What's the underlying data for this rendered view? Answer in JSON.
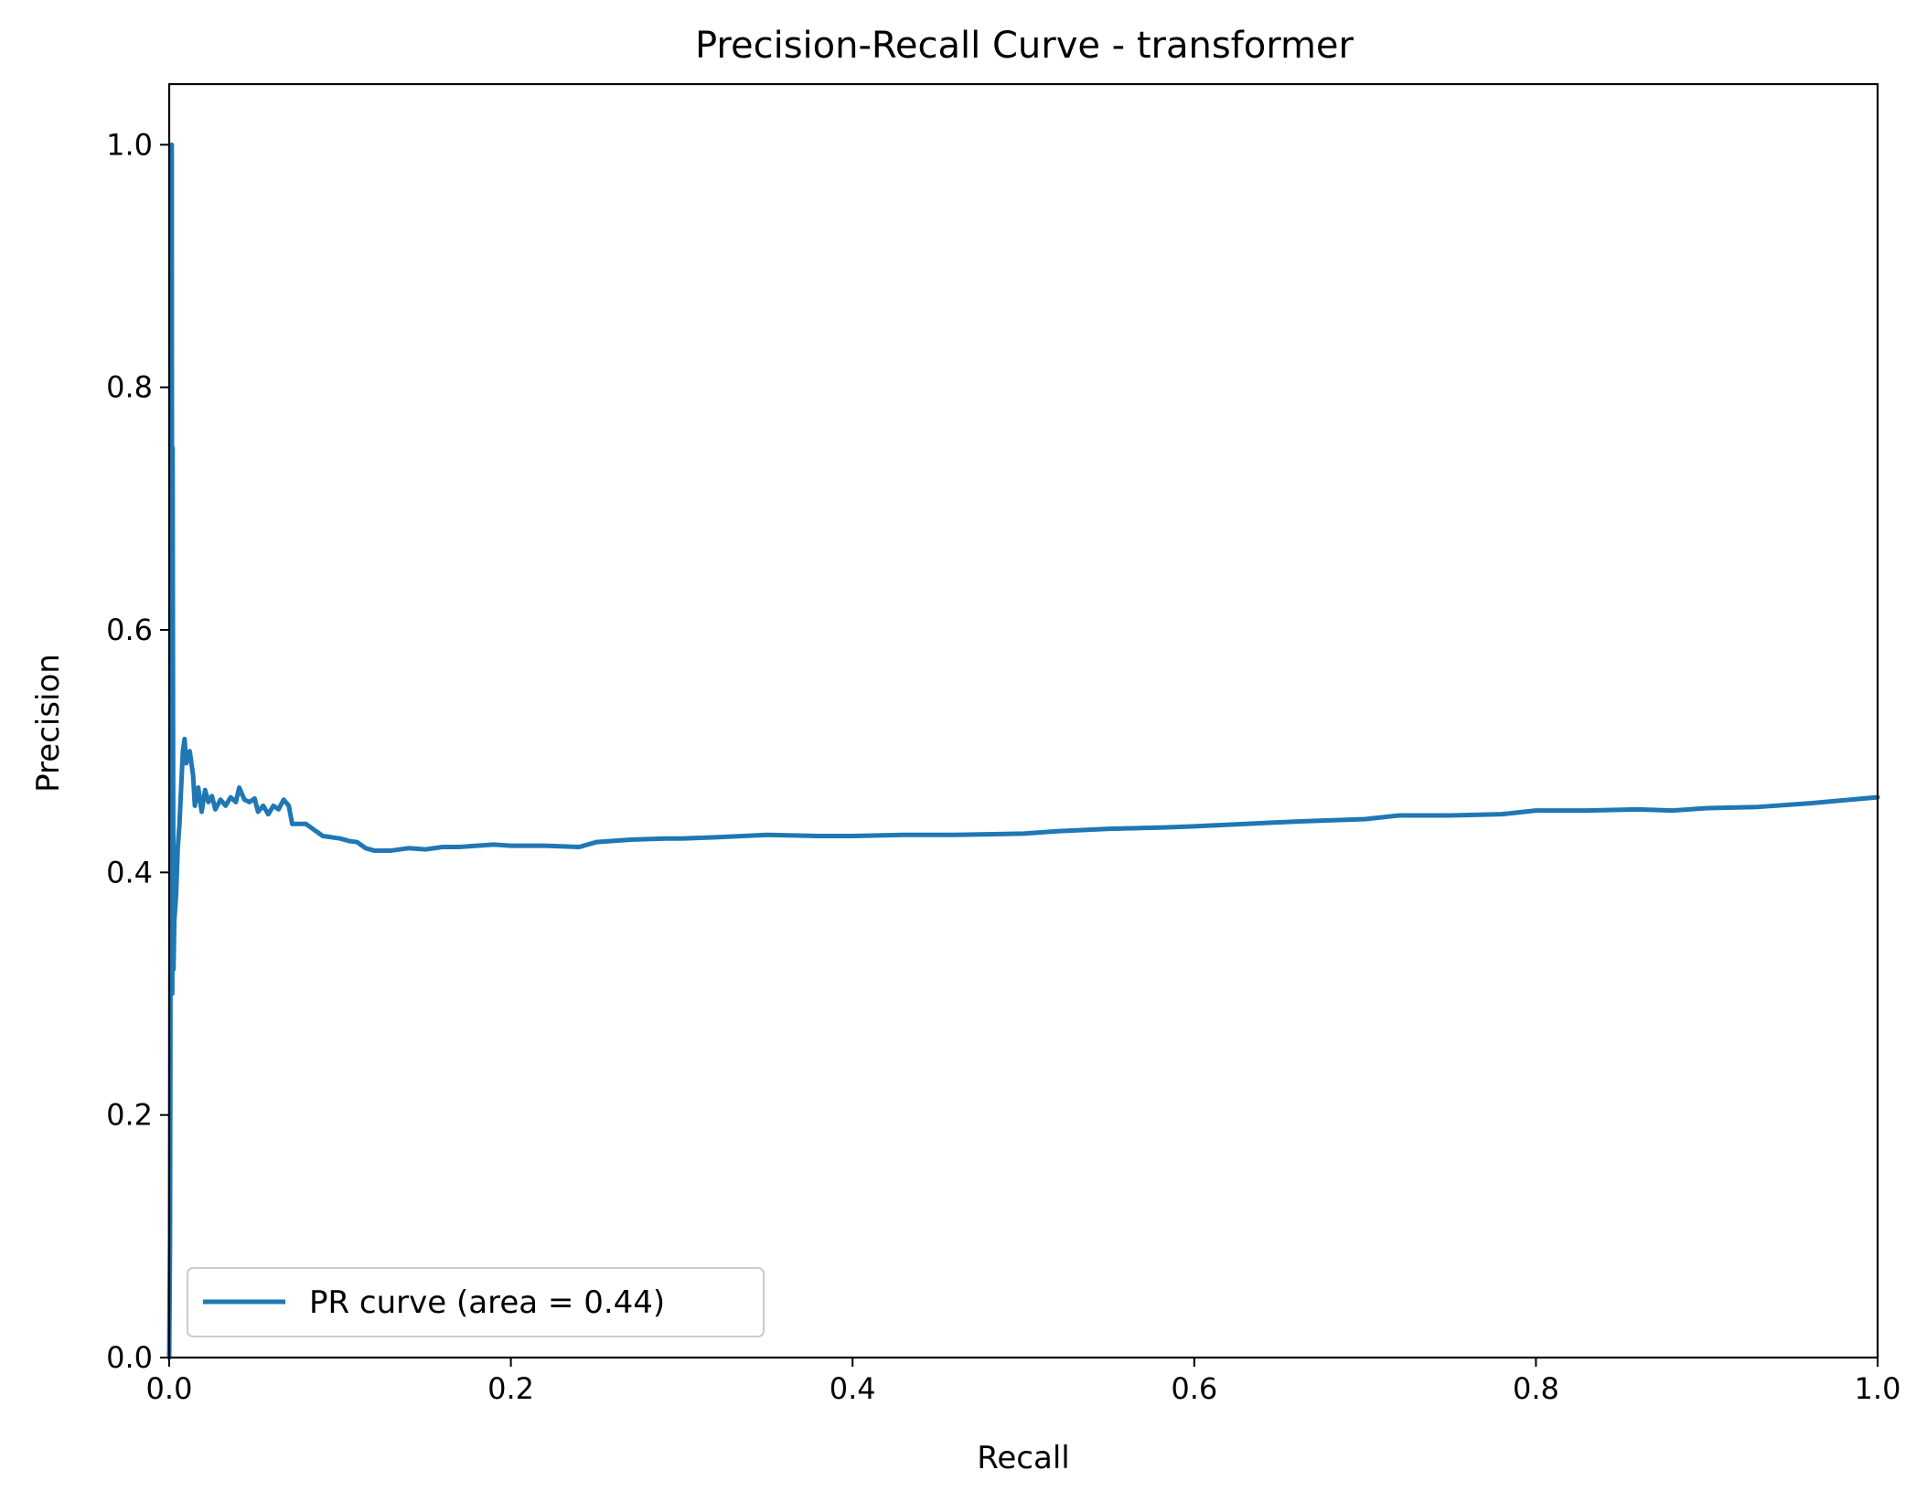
{
  "chart_data": {
    "type": "line",
    "title": "Precision-Recall Curve - transformer",
    "xlabel": "Recall",
    "ylabel": "Precision",
    "xlim": [
      0.0,
      1.0
    ],
    "ylim": [
      0.0,
      1.05
    ],
    "x_ticks": [
      "0.0",
      "0.2",
      "0.4",
      "0.6",
      "0.8",
      "1.0"
    ],
    "y_ticks": [
      "0.0",
      "0.2",
      "0.4",
      "0.6",
      "0.8",
      "1.0"
    ],
    "grid": false,
    "legend_position": "lower-left",
    "series": [
      {
        "name": "PR curve (area = 0.44)",
        "color": "#1f77b4",
        "points": [
          [
            0.0,
            0.0
          ],
          [
            0.0005,
            0.1
          ],
          [
            0.001,
            0.5
          ],
          [
            0.0015,
            1.0
          ],
          [
            0.0018,
            0.3
          ],
          [
            0.002,
            0.75
          ],
          [
            0.0025,
            0.32
          ],
          [
            0.003,
            0.36
          ],
          [
            0.004,
            0.38
          ],
          [
            0.005,
            0.42
          ],
          [
            0.006,
            0.44
          ],
          [
            0.007,
            0.47
          ],
          [
            0.008,
            0.5
          ],
          [
            0.009,
            0.51
          ],
          [
            0.01,
            0.49
          ],
          [
            0.012,
            0.5
          ],
          [
            0.014,
            0.48
          ],
          [
            0.015,
            0.455
          ],
          [
            0.017,
            0.47
          ],
          [
            0.019,
            0.45
          ],
          [
            0.021,
            0.468
          ],
          [
            0.023,
            0.458
          ],
          [
            0.025,
            0.463
          ],
          [
            0.027,
            0.452
          ],
          [
            0.03,
            0.46
          ],
          [
            0.033,
            0.455
          ],
          [
            0.036,
            0.462
          ],
          [
            0.039,
            0.458
          ],
          [
            0.041,
            0.47
          ],
          [
            0.044,
            0.46
          ],
          [
            0.047,
            0.458
          ],
          [
            0.05,
            0.461
          ],
          [
            0.052,
            0.45
          ],
          [
            0.055,
            0.455
          ],
          [
            0.058,
            0.448
          ],
          [
            0.061,
            0.455
          ],
          [
            0.064,
            0.452
          ],
          [
            0.067,
            0.46
          ],
          [
            0.07,
            0.455
          ],
          [
            0.072,
            0.44
          ],
          [
            0.075,
            0.44
          ],
          [
            0.08,
            0.44
          ],
          [
            0.085,
            0.435
          ],
          [
            0.09,
            0.43
          ],
          [
            0.1,
            0.428
          ],
          [
            0.105,
            0.426
          ],
          [
            0.11,
            0.425
          ],
          [
            0.115,
            0.42
          ],
          [
            0.12,
            0.418
          ],
          [
            0.13,
            0.418
          ],
          [
            0.14,
            0.42
          ],
          [
            0.15,
            0.419
          ],
          [
            0.16,
            0.421
          ],
          [
            0.17,
            0.421
          ],
          [
            0.18,
            0.422
          ],
          [
            0.19,
            0.423
          ],
          [
            0.2,
            0.422
          ],
          [
            0.22,
            0.422
          ],
          [
            0.24,
            0.421
          ],
          [
            0.25,
            0.425
          ],
          [
            0.27,
            0.427
          ],
          [
            0.29,
            0.428
          ],
          [
            0.3,
            0.428
          ],
          [
            0.32,
            0.429
          ],
          [
            0.35,
            0.431
          ],
          [
            0.38,
            0.43
          ],
          [
            0.4,
            0.43
          ],
          [
            0.43,
            0.431
          ],
          [
            0.46,
            0.431
          ],
          [
            0.5,
            0.432
          ],
          [
            0.52,
            0.434
          ],
          [
            0.55,
            0.436
          ],
          [
            0.58,
            0.437
          ],
          [
            0.6,
            0.438
          ],
          [
            0.63,
            0.44
          ],
          [
            0.66,
            0.442
          ],
          [
            0.7,
            0.444
          ],
          [
            0.72,
            0.447
          ],
          [
            0.75,
            0.447
          ],
          [
            0.78,
            0.448
          ],
          [
            0.8,
            0.451
          ],
          [
            0.83,
            0.451
          ],
          [
            0.86,
            0.452
          ],
          [
            0.88,
            0.451
          ],
          [
            0.9,
            0.453
          ],
          [
            0.93,
            0.454
          ],
          [
            0.96,
            0.457
          ],
          [
            1.0,
            0.462
          ]
        ]
      }
    ]
  }
}
